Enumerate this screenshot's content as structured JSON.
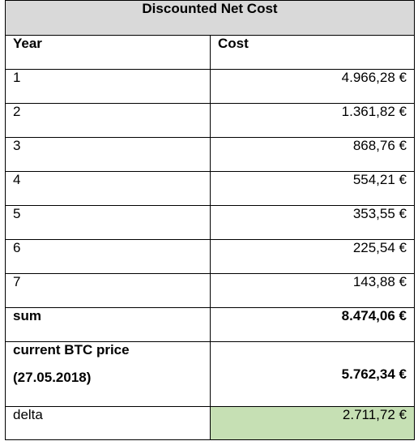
{
  "table": {
    "title": "Discounted Net Cost",
    "headers": [
      "Year",
      "Cost"
    ],
    "rows": [
      {
        "year": "1",
        "cost": "4.966,28 €"
      },
      {
        "year": "2",
        "cost": "1.361,82 €"
      },
      {
        "year": "3",
        "cost": "868,76 €"
      },
      {
        "year": "4",
        "cost": "554,21 €"
      },
      {
        "year": "5",
        "cost": "353,55 €"
      },
      {
        "year": "6",
        "cost": "225,54 €"
      },
      {
        "year": "7",
        "cost": "143,88 €"
      }
    ],
    "sum": {
      "label": "sum",
      "value": "8.474,06 €"
    },
    "btc": {
      "label_line1": "current BTC price",
      "label_line2": "(27.05.2018)",
      "value": "5.762,34 €"
    },
    "delta": {
      "label": "delta",
      "value": "2.711,72 €",
      "highlight_color": "#c6e0b4"
    }
  }
}
